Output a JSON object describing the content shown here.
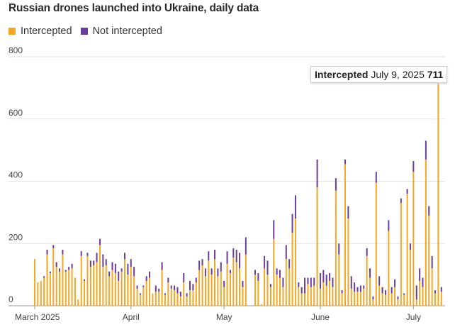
{
  "title": "Russian drones launched into Ukraine, daily data",
  "legend": [
    {
      "label": "Intercepted",
      "color": "#f5a623"
    },
    {
      "label": "Not intercepted",
      "color": "#6a3d9a"
    }
  ],
  "tooltip": {
    "series": "Intercepted",
    "date": "July 9, 2025",
    "value": "711"
  },
  "chart_data": {
    "type": "bar",
    "stacked": true,
    "title": "Russian drones launched into Ukraine, daily data",
    "x_tick_labels": [
      "March 2025",
      "April",
      "May",
      "June",
      "July"
    ],
    "y_ticks": [
      "0",
      "200",
      "400",
      "600",
      "800"
    ],
    "ylim": [
      0,
      800
    ],
    "grid": true,
    "legend_position": "top-left",
    "x": [
      "Mar 1",
      "Mar 2",
      "Mar 3",
      "Mar 4",
      "Mar 5",
      "Mar 6",
      "Mar 7",
      "Mar 8",
      "Mar 9",
      "Mar 10",
      "Mar 11",
      "Mar 12",
      "Mar 13",
      "Mar 14",
      "Mar 15",
      "Mar 16",
      "Mar 17",
      "Mar 18",
      "Mar 19",
      "Mar 20",
      "Mar 21",
      "Mar 22",
      "Mar 23",
      "Mar 24",
      "Mar 25",
      "Mar 26",
      "Mar 27",
      "Mar 28",
      "Mar 29",
      "Mar 30",
      "Mar 31",
      "Apr 1",
      "Apr 2",
      "Apr 3",
      "Apr 4",
      "Apr 5",
      "Apr 6",
      "Apr 7",
      "Apr 8",
      "Apr 9",
      "Apr 10",
      "Apr 11",
      "Apr 12",
      "Apr 13",
      "Apr 14",
      "Apr 15",
      "Apr 16",
      "Apr 17",
      "Apr 18",
      "Apr 19",
      "Apr 20",
      "Apr 21",
      "Apr 22",
      "Apr 23",
      "Apr 24",
      "Apr 25",
      "Apr 26",
      "Apr 27",
      "Apr 28",
      "Apr 29",
      "Apr 30",
      "May 1",
      "May 2",
      "May 3",
      "May 4",
      "May 5",
      "May 6",
      "May 7",
      "May 8",
      "May 9",
      "May 10",
      "May 11",
      "May 12",
      "May 13",
      "May 14",
      "May 15",
      "May 16",
      "May 17",
      "May 18",
      "May 19",
      "May 20",
      "May 21",
      "May 22",
      "May 23",
      "May 24",
      "May 25",
      "May 26",
      "May 27",
      "May 28",
      "May 29",
      "May 30",
      "May 31",
      "Jun 1",
      "Jun 2",
      "Jun 3",
      "Jun 4",
      "Jun 5",
      "Jun 6",
      "Jun 7",
      "Jun 8",
      "Jun 9",
      "Jun 10",
      "Jun 11",
      "Jun 12",
      "Jun 13",
      "Jun 14",
      "Jun 15",
      "Jun 16",
      "Jun 17",
      "Jun 18",
      "Jun 19",
      "Jun 20",
      "Jun 21",
      "Jun 22",
      "Jun 23",
      "Jun 24",
      "Jun 25",
      "Jun 26",
      "Jun 27",
      "Jun 28",
      "Jun 29",
      "Jun 30",
      "Jul 1",
      "Jul 2",
      "Jul 3",
      "Jul 4",
      "Jul 5",
      "Jul 6",
      "Jul 7",
      "Jul 8",
      "Jul 9",
      "Jul 10"
    ],
    "series": [
      {
        "name": "Intercepted",
        "color": "#f5a623",
        "values": [
          150,
          75,
          80,
          90,
          165,
          105,
          185,
          125,
          110,
          165,
          110,
          115,
          120,
          90,
          20,
          160,
          80,
          160,
          125,
          130,
          140,
          195,
          125,
          130,
          95,
          115,
          105,
          80,
          110,
          150,
          100,
          125,
          95,
          55,
          35,
          60,
          80,
          90,
          40,
          45,
          45,
          115,
          35,
          75,
          55,
          50,
          40,
          30,
          75,
          30,
          50,
          50,
          75,
          115,
          130,
          95,
          145,
          100,
          150,
          95,
          110,
          60,
          135,
          105,
          155,
          140,
          120,
          60,
          165,
          0,
          0,
          100,
          80,
          5,
          120,
          100,
          60,
          215,
          100,
          90,
          60,
          150,
          120,
          235,
          280,
          60,
          40,
          40,
          70,
          60,
          65,
          380,
          55,
          75,
          65,
          80,
          60,
          370,
          165,
          40,
          455,
          280,
          55,
          45,
          45,
          45,
          55,
          160,
          90,
          20,
          395,
          65,
          40,
          35,
          240,
          40,
          60,
          20,
          330,
          35,
          360,
          180,
          430,
          20,
          80,
          60,
          470,
          290,
          120,
          40,
          711,
          45
        ]
      },
      {
        "name": "Not intercepted",
        "color": "#6a3d9a",
        "values": [
          0,
          0,
          0,
          5,
          15,
          5,
          10,
          15,
          10,
          15,
          5,
          10,
          15,
          0,
          0,
          15,
          5,
          10,
          20,
          15,
          30,
          20,
          40,
          20,
          15,
          25,
          30,
          30,
          10,
          20,
          35,
          25,
          30,
          10,
          5,
          5,
          15,
          20,
          0,
          20,
          10,
          25,
          5,
          15,
          10,
          15,
          20,
          15,
          30,
          10,
          30,
          20,
          15,
          30,
          20,
          25,
          30,
          20,
          30,
          25,
          30,
          20,
          40,
          10,
          30,
          40,
          50,
          20,
          55,
          0,
          0,
          15,
          25,
          0,
          40,
          45,
          10,
          60,
          20,
          25,
          30,
          45,
          30,
          60,
          75,
          15,
          20,
          50,
          20,
          30,
          25,
          90,
          50,
          40,
          35,
          25,
          30,
          40,
          35,
          10,
          15,
          40,
          40,
          30,
          15,
          20,
          10,
          25,
          30,
          10,
          35,
          30,
          20,
          15,
          35,
          20,
          25,
          10,
          15,
          5,
          15,
          20,
          35,
          45,
          40,
          30,
          60,
          30,
          40,
          10,
          0,
          15
        ]
      }
    ]
  }
}
